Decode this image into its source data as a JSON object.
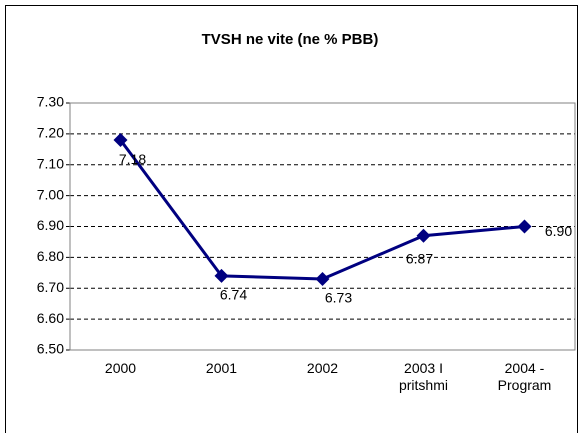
{
  "chart_data": {
    "type": "line",
    "title": "TVSH  ne vite (ne % PBB)",
    "categories": [
      "2000",
      "2001",
      "2002",
      "2003 I\npritshmi",
      "2004 -\nProgram"
    ],
    "series": [
      {
        "name": "TVSH",
        "color": "#000080",
        "values": [
          7.18,
          6.74,
          6.73,
          6.87,
          6.9
        ],
        "value_labels": [
          "7.18",
          "6.74",
          "6.73",
          "6.87",
          "6.90"
        ]
      }
    ],
    "ylim": [
      6.5,
      7.3
    ],
    "yticks": [
      {
        "value": 6.5,
        "label": "6.50"
      },
      {
        "value": 6.6,
        "label": "6.60"
      },
      {
        "value": 6.7,
        "label": "6.70"
      },
      {
        "value": 6.8,
        "label": "6.80"
      },
      {
        "value": 6.9,
        "label": "6.90"
      },
      {
        "value": 7.0,
        "label": "7.00"
      },
      {
        "value": 7.1,
        "label": "7.10"
      },
      {
        "value": 7.2,
        "label": "7.20"
      },
      {
        "value": 7.3,
        "label": "7.30"
      }
    ],
    "grid": true
  }
}
